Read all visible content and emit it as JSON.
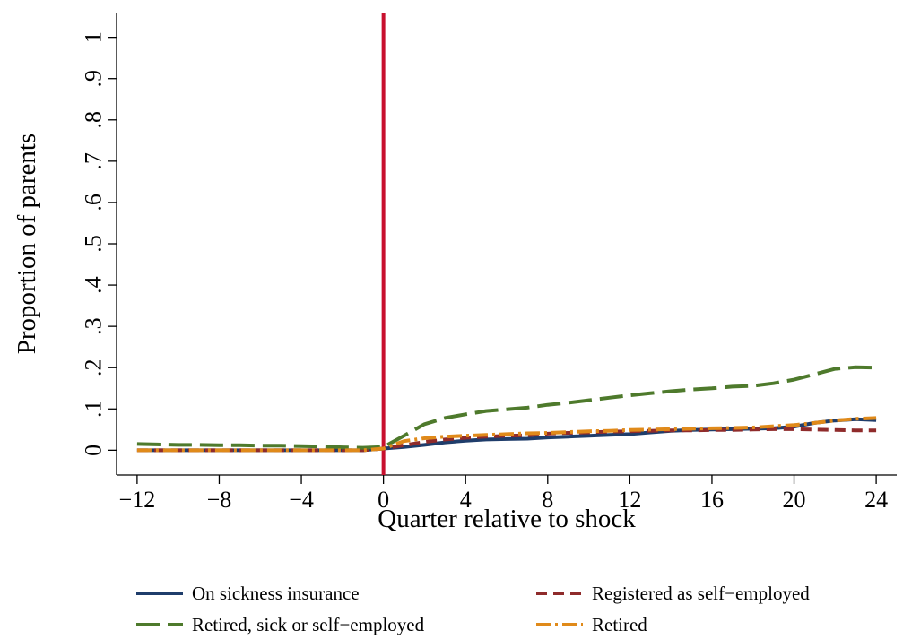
{
  "chart_data": {
    "type": "line",
    "title": "",
    "xlabel": "Quarter relative to shock",
    "ylabel": "Proportion of parents",
    "xlim": [
      -13,
      25
    ],
    "ylim": [
      -0.06,
      1.06
    ],
    "xticks": [
      -12,
      -8,
      -4,
      0,
      4,
      8,
      12,
      16,
      20,
      24
    ],
    "xtick_labels": [
      "−12",
      "−8",
      "−4",
      "0",
      "4",
      "8",
      "12",
      "16",
      "20",
      "24"
    ],
    "yticks": [
      0,
      0.1,
      0.2,
      0.3,
      0.4,
      0.5,
      0.6,
      0.7,
      0.8,
      0.9,
      1
    ],
    "ytick_labels": [
      "0",
      ".1",
      ".2",
      ".3",
      ".4",
      ".5",
      ".6",
      ".7",
      ".8",
      ".9",
      "1"
    ],
    "grid": false,
    "legend_position": "bottom",
    "reference_line": {
      "x": 0,
      "color": "#c8102e"
    },
    "x": [
      -12,
      -11,
      -10,
      -9,
      -8,
      -7,
      -6,
      -5,
      -4,
      -3,
      -2,
      -1,
      0,
      1,
      2,
      3,
      4,
      5,
      6,
      7,
      8,
      9,
      10,
      11,
      12,
      13,
      14,
      15,
      16,
      17,
      18,
      19,
      20,
      21,
      22,
      23,
      24
    ],
    "series": [
      {
        "name": "On sickness insurance",
        "color": "#1f3d6b",
        "dash": "solid",
        "values": [
          0,
          0,
          0,
          0,
          0,
          0,
          0,
          0,
          0,
          0,
          0,
          0,
          0.004,
          0.008,
          0.013,
          0.019,
          0.023,
          0.026,
          0.027,
          0.028,
          0.031,
          0.033,
          0.035,
          0.037,
          0.039,
          0.043,
          0.047,
          0.049,
          0.05,
          0.051,
          0.052,
          0.053,
          0.057,
          0.066,
          0.072,
          0.075,
          0.073
        ]
      },
      {
        "name": "Registered as self−employed",
        "color": "#8f2b2b",
        "dash": "short",
        "values": [
          0,
          0,
          0,
          0,
          0,
          0,
          0,
          0,
          0,
          0,
          0,
          0,
          0.004,
          0.012,
          0.02,
          0.026,
          0.03,
          0.033,
          0.035,
          0.036,
          0.04,
          0.042,
          0.043,
          0.045,
          0.046,
          0.047,
          0.048,
          0.048,
          0.049,
          0.049,
          0.05,
          0.051,
          0.051,
          0.05,
          0.049,
          0.048,
          0.048
        ]
      },
      {
        "name": "Retired, sick or self−employed",
        "color": "#4e7a2c",
        "dash": "long",
        "values": [
          0.015,
          0.014,
          0.013,
          0.013,
          0.012,
          0.012,
          0.011,
          0.011,
          0.01,
          0.009,
          0.007,
          0.006,
          0.008,
          0.035,
          0.063,
          0.078,
          0.087,
          0.095,
          0.099,
          0.103,
          0.11,
          0.115,
          0.121,
          0.127,
          0.133,
          0.138,
          0.143,
          0.147,
          0.15,
          0.154,
          0.156,
          0.162,
          0.171,
          0.184,
          0.197,
          0.201,
          0.2
        ]
      },
      {
        "name": "Retired",
        "color": "#e08a1a",
        "dash": "dashdot",
        "values": [
          0,
          0,
          0,
          0,
          0,
          0,
          0,
          0,
          0,
          0,
          0,
          0,
          0.004,
          0.022,
          0.029,
          0.033,
          0.035,
          0.037,
          0.039,
          0.041,
          0.042,
          0.044,
          0.046,
          0.047,
          0.049,
          0.05,
          0.051,
          0.052,
          0.053,
          0.054,
          0.055,
          0.058,
          0.061,
          0.066,
          0.072,
          0.076,
          0.078
        ]
      }
    ]
  }
}
